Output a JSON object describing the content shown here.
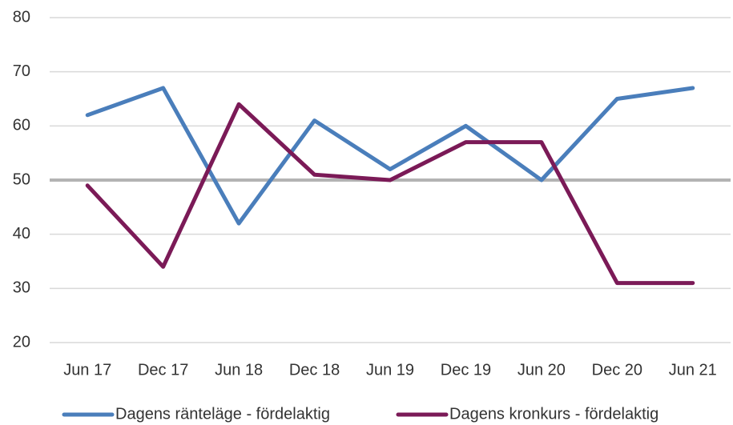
{
  "chart_data": {
    "type": "line",
    "categories": [
      "Jun 17",
      "Dec 17",
      "Jun 18",
      "Dec 18",
      "Jun 19",
      "Dec 19",
      "Jun 20",
      "Dec 20",
      "Jun 21"
    ],
    "series": [
      {
        "name": "Dagens ränteläge - fördelaktig",
        "color": "#4a7ebb",
        "values": [
          62,
          67,
          42,
          61,
          52,
          60,
          50,
          65,
          67
        ]
      },
      {
        "name": "Dagens kronkurs - fördelaktig",
        "color": "#7b1a57",
        "values": [
          49,
          34,
          64,
          51,
          50,
          57,
          57,
          31,
          31
        ]
      }
    ],
    "ylim": [
      20,
      80
    ],
    "yticks": [
      20,
      30,
      40,
      50,
      60,
      70,
      80
    ],
    "grid": true,
    "reference_line": 50,
    "legend": "bottom"
  }
}
